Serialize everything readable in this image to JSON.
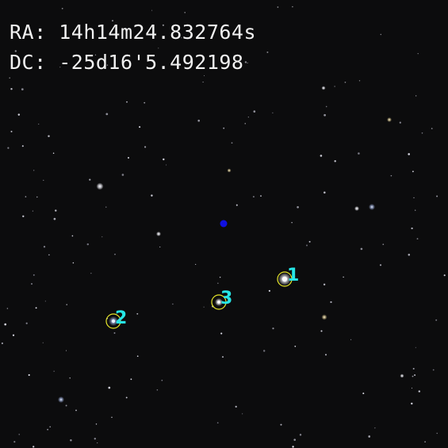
{
  "coordinates": {
    "ra_prefix": "RA: ",
    "ra_value": "14h14m24.832764s",
    "dc_prefix": "DC: ",
    "dc_value": "-25d16'5.492198"
  },
  "colors": {
    "background": "#0c0c0d",
    "coordinate_text": "#f2f2f2",
    "marker_circle": "#e6e62a",
    "marker_label": "#26e6e6",
    "center_dot": "#1010e0"
  },
  "markers": [
    {
      "label": "1"
    },
    {
      "label": "2"
    },
    {
      "label": "3"
    }
  ]
}
